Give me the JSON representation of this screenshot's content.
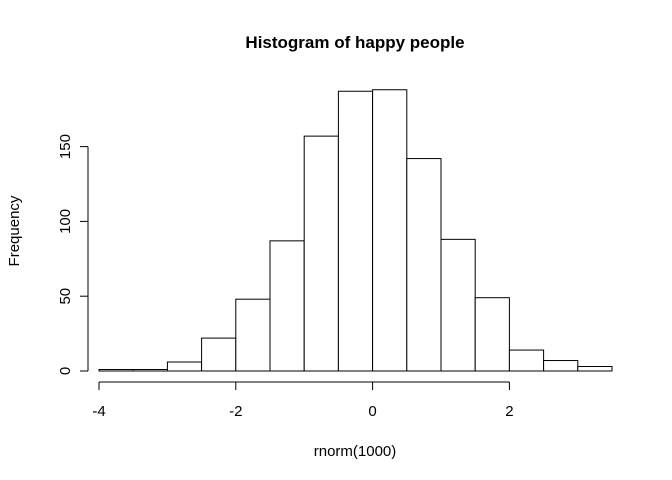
{
  "chart_data": {
    "type": "bar",
    "title": "Histogram of happy people",
    "xlabel": "rnorm(1000)",
    "ylabel": "Frequency",
    "bins": [
      {
        "x0": -4.0,
        "x1": -3.5,
        "count": 1
      },
      {
        "x0": -3.5,
        "x1": -3.0,
        "count": 1
      },
      {
        "x0": -3.0,
        "x1": -2.5,
        "count": 6
      },
      {
        "x0": -2.5,
        "x1": -2.0,
        "count": 22
      },
      {
        "x0": -2.0,
        "x1": -1.5,
        "count": 48
      },
      {
        "x0": -1.5,
        "x1": -1.0,
        "count": 87
      },
      {
        "x0": -1.0,
        "x1": -0.5,
        "count": 157
      },
      {
        "x0": -0.5,
        "x1": 0.0,
        "count": 187
      },
      {
        "x0": 0.0,
        "x1": 0.5,
        "count": 188
      },
      {
        "x0": 0.5,
        "x1": 1.0,
        "count": 142
      },
      {
        "x0": 1.0,
        "x1": 1.5,
        "count": 88
      },
      {
        "x0": 1.5,
        "x1": 2.0,
        "count": 49
      },
      {
        "x0": 2.0,
        "x1": 2.5,
        "count": 14
      },
      {
        "x0": 2.5,
        "x1": 3.0,
        "count": 7
      },
      {
        "x0": 3.0,
        "x1": 3.5,
        "count": 3
      }
    ],
    "xlim": [
      -4,
      3.5
    ],
    "ylim": [
      0,
      200
    ],
    "x_ticks": [
      -4,
      -2,
      0,
      2
    ],
    "y_ticks": [
      0,
      50,
      100,
      150
    ],
    "x_tick_labels": [
      "-4",
      "-2",
      "0",
      "2"
    ],
    "y_tick_labels": [
      "0",
      "50",
      "100",
      "150"
    ],
    "grid": false,
    "colors": {
      "bar_fill": "#ffffff",
      "bar_stroke": "#000000",
      "axis": "#000000"
    }
  }
}
